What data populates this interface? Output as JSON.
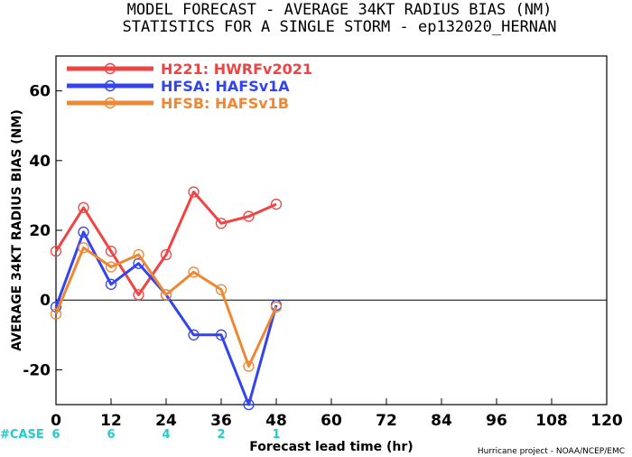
{
  "chart_data": {
    "type": "line",
    "title_lines": [
      "MODEL FORECAST - AVERAGE 34KT RADIUS BIAS (NM)",
      "STATISTICS FOR A SINGLE STORM - ep132020_HERNAN"
    ],
    "xlabel": "Forecast lead time (hr)",
    "ylabel": "AVERAGE 34KT RADIUS BIAS (NM)",
    "xlim": [
      0,
      120
    ],
    "ylim": [
      -30,
      70
    ],
    "xticks": [
      0,
      12,
      24,
      36,
      48,
      60,
      72,
      84,
      96,
      108,
      120
    ],
    "yticks": [
      -20,
      0,
      20,
      40,
      60
    ],
    "zero_line": true,
    "grid": false,
    "legend_position": "top-left",
    "series": [
      {
        "name": "H221: HWRFv2021",
        "color": "#ee4444",
        "x": [
          0,
          6,
          12,
          18,
          24,
          30,
          36,
          42,
          48
        ],
        "y": [
          14,
          26.5,
          14,
          1.5,
          13,
          31,
          22,
          24,
          27.5
        ]
      },
      {
        "name": "HFSA: HAFSv1A",
        "color": "#3344ee",
        "x": [
          0,
          6,
          12,
          18,
          24,
          30,
          36,
          42,
          48
        ],
        "y": [
          -2,
          19.5,
          4.5,
          10.5,
          1.5,
          -10,
          -10,
          -30,
          -1.5
        ]
      },
      {
        "name": "HFSB: HAFSv1B",
        "color": "#ee8833",
        "x": [
          0,
          6,
          12,
          18,
          24,
          30,
          36,
          42,
          48
        ],
        "y": [
          -4,
          15,
          9.5,
          13,
          1.5,
          8,
          3,
          -19,
          -2
        ]
      }
    ],
    "case_label": "#CASE",
    "case_color": "#22cccc",
    "cases": [
      {
        "x": 0,
        "n": "6"
      },
      {
        "x": 12,
        "n": "6"
      },
      {
        "x": 24,
        "n": "4"
      },
      {
        "x": 36,
        "n": "2"
      },
      {
        "x": 48,
        "n": "1"
      }
    ],
    "credit": "Hurricane project - NOAA/NCEP/EMC"
  }
}
